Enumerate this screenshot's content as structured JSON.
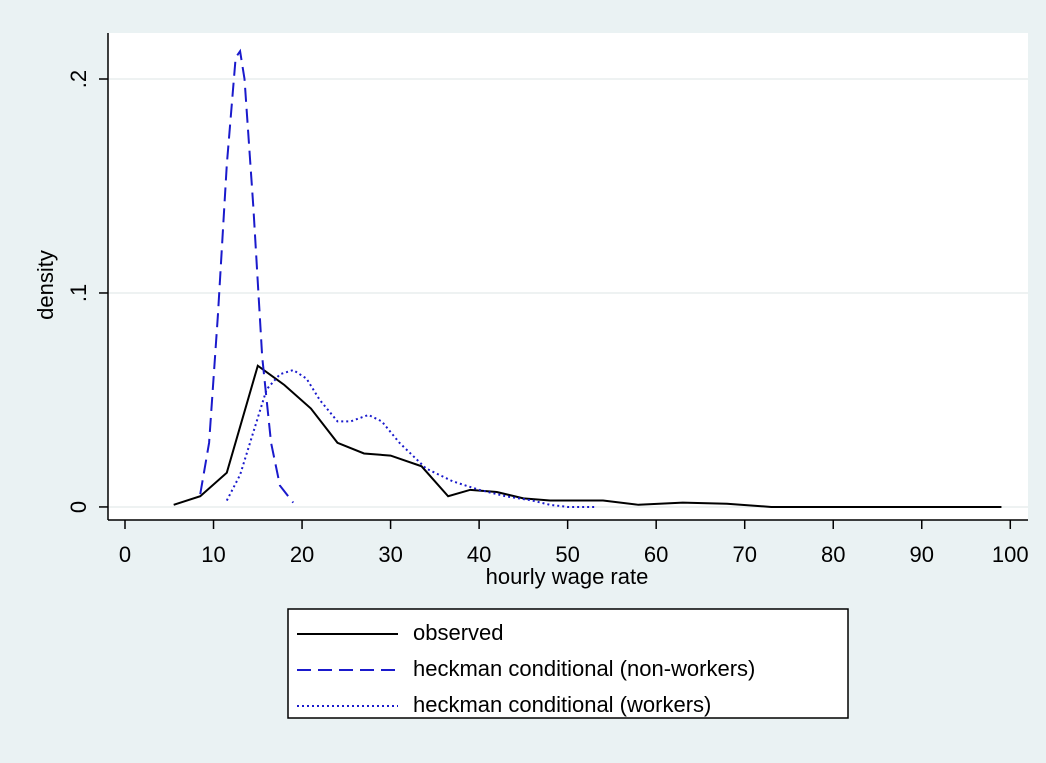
{
  "chart_data": {
    "type": "line",
    "xlabel": "hourly wage rate",
    "ylabel": "density",
    "xlim": [
      -1.92,
      102.0
    ],
    "ylim": [
      -0.0061,
      0.2215
    ],
    "xticks": [
      0,
      10,
      20,
      30,
      40,
      50,
      60,
      70,
      80,
      90,
      100
    ],
    "yticks": [
      {
        "value": 0,
        "label": "0"
      },
      {
        "value": 0.1,
        "label": ".1"
      },
      {
        "value": 0.2,
        "label": ".2"
      }
    ],
    "grid": true,
    "legend": "bottom",
    "series": [
      {
        "name": "observed",
        "color": "#000000",
        "style": "solid",
        "x": [
          5.5,
          8.5,
          11.5,
          15,
          18,
          21,
          24,
          27,
          30,
          33.5,
          36.5,
          39,
          42,
          45,
          48,
          54,
          58,
          63,
          68,
          73,
          80,
          99
        ],
        "values": [
          0.001,
          0.005,
          0.016,
          0.066,
          0.057,
          0.046,
          0.03,
          0.025,
          0.024,
          0.019,
          0.005,
          0.008,
          0.007,
          0.004,
          0.003,
          0.003,
          0.001,
          0.002,
          0.0015,
          0,
          0,
          0
        ]
      },
      {
        "name": "heckman conditional (non-workers)",
        "color": "#1a1acc",
        "style": "dashed",
        "x": [
          8.5,
          9.5,
          10.5,
          11.5,
          12.5,
          13,
          13.5,
          14.5,
          15.5,
          16.5,
          17.5,
          19
        ],
        "values": [
          0.006,
          0.03,
          0.09,
          0.16,
          0.21,
          0.213,
          0.2,
          0.14,
          0.07,
          0.03,
          0.01,
          0.002
        ]
      },
      {
        "name": "heckman conditional (workers)",
        "color": "#1a1acc",
        "style": "dotted",
        "x": [
          11.5,
          13,
          14.5,
          16,
          17.5,
          19,
          20.5,
          22,
          24,
          25.5,
          27.5,
          29,
          31,
          34,
          37,
          40,
          43,
          46,
          48,
          50,
          53
        ],
        "values": [
          0.003,
          0.015,
          0.035,
          0.055,
          0.062,
          0.064,
          0.06,
          0.05,
          0.04,
          0.04,
          0.043,
          0.04,
          0.03,
          0.018,
          0.012,
          0.008,
          0.005,
          0.003,
          0.001,
          0,
          0
        ]
      }
    ]
  }
}
